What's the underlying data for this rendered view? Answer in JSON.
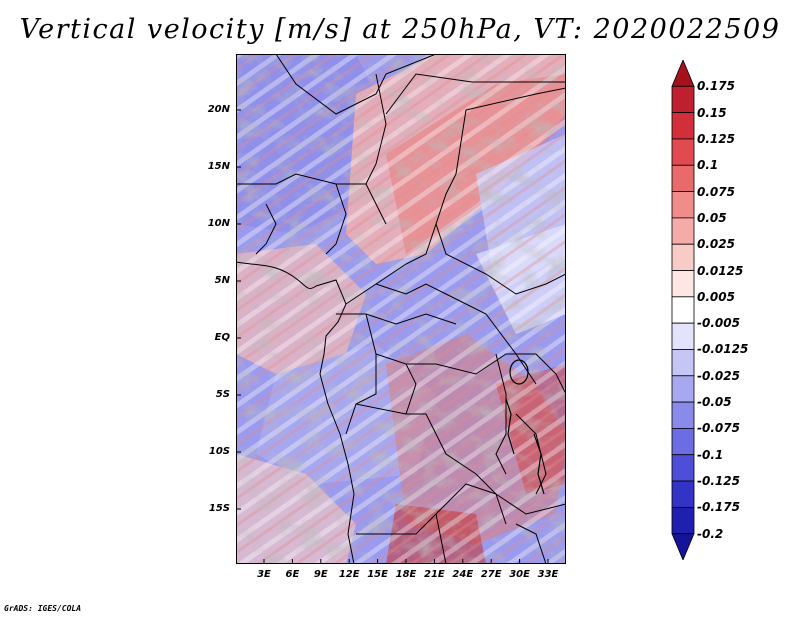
{
  "title": "Vertical velocity [m/s] at 250hPa, VT: 2020022509",
  "footer": "GrADS: IGES/COLA",
  "latitude_labels": [
    "20N",
    "15N",
    "10N",
    "5N",
    "EQ",
    "5S",
    "10S",
    "15S"
  ],
  "longitude_labels": [
    "3E",
    "6E",
    "9E",
    "12E",
    "15E",
    "18E",
    "21E",
    "24E",
    "27E",
    "30E",
    "33E"
  ],
  "colorbar": {
    "levels": [
      "0.175",
      "0.15",
      "0.125",
      "0.1",
      "0.075",
      "0.05",
      "0.025",
      "0.0125",
      "0.005",
      "-0.005",
      "-0.0125",
      "-0.025",
      "-0.05",
      "-0.075",
      "-0.1",
      "-0.125",
      "-0.175",
      "-0.2"
    ],
    "colors": [
      "#a5121b",
      "#bf2030",
      "#d22f3a",
      "#e04a50",
      "#e86a6a",
      "#f08c8a",
      "#f5aca8",
      "#f9cbc7",
      "#fde6e3",
      "#ffffff",
      "#e3e3fb",
      "#c6c6f5",
      "#a8a8f0",
      "#8a8aeb",
      "#6c6ce3",
      "#4e4ed8",
      "#3333c8",
      "#2020b0",
      "#14149a"
    ]
  }
}
